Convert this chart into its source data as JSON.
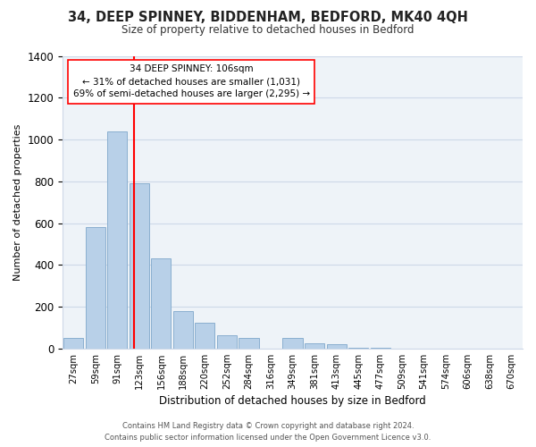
{
  "title": "34, DEEP SPINNEY, BIDDENHAM, BEDFORD, MK40 4QH",
  "subtitle": "Size of property relative to detached houses in Bedford",
  "xlabel": "Distribution of detached houses by size in Bedford",
  "ylabel": "Number of detached properties",
  "bar_color": "#b8d0e8",
  "bar_edge_color": "#8aafd0",
  "categories": [
    "27sqm",
    "59sqm",
    "91sqm",
    "123sqm",
    "156sqm",
    "188sqm",
    "220sqm",
    "252sqm",
    "284sqm",
    "316sqm",
    "349sqm",
    "381sqm",
    "413sqm",
    "445sqm",
    "477sqm",
    "509sqm",
    "541sqm",
    "574sqm",
    "606sqm",
    "638sqm",
    "670sqm"
  ],
  "values": [
    50,
    580,
    1040,
    790,
    430,
    180,
    125,
    65,
    50,
    0,
    50,
    25,
    20,
    5,
    2,
    0,
    0,
    0,
    0,
    0,
    0
  ],
  "redline_x": 2.78,
  "ylim": [
    0,
    1400
  ],
  "yticks": [
    0,
    200,
    400,
    600,
    800,
    1000,
    1200,
    1400
  ],
  "annotation_title": "34 DEEP SPINNEY: 106sqm",
  "annotation_line1": "← 31% of detached houses are smaller (1,031)",
  "annotation_line2": "69% of semi-detached houses are larger (2,295) →",
  "footer_line1": "Contains HM Land Registry data © Crown copyright and database right 2024.",
  "footer_line2": "Contains public sector information licensed under the Open Government Licence v3.0.",
  "background_color": "#ffffff",
  "grid_color": "#cdd8e8"
}
